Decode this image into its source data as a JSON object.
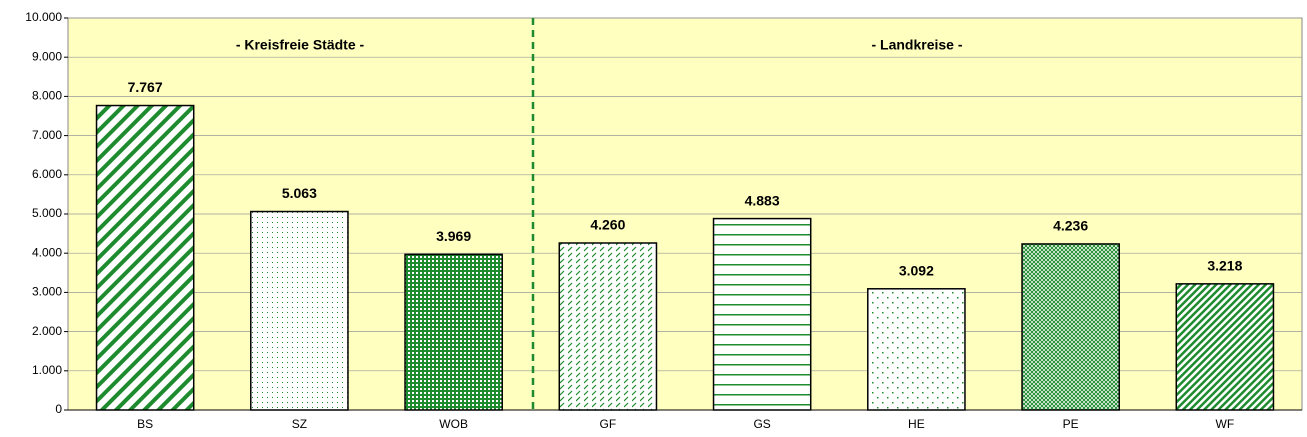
{
  "chart_data": {
    "type": "bar",
    "annotations": [
      "- Kreisfreie Städte -",
      "- Landkreise -"
    ],
    "categories": [
      "BS",
      "SZ",
      "WOB",
      "GF",
      "GS",
      "HE",
      "PE",
      "WF"
    ],
    "values": [
      7767,
      5063,
      3969,
      4260,
      4883,
      3092,
      4236,
      3218
    ],
    "value_labels": [
      "7.767",
      "5.063",
      "3.969",
      "4.260",
      "4.883",
      "3.092",
      "4.236",
      "3.218"
    ],
    "color": "#1e8c2e",
    "ylim": [
      0,
      10000
    ],
    "yticks": [
      0,
      {
        "value": 1000,
        "label": "1.000"
      },
      {
        "value": 2000,
        "label": "2.000"
      },
      {
        "value": 3000,
        "label": "3.000"
      },
      {
        "value": 4000,
        "label": "4.000"
      },
      {
        "value": 5000,
        "label": "5.000"
      },
      {
        "value": 6000,
        "label": "6.000"
      },
      {
        "value": 7000,
        "label": "7.000"
      },
      {
        "value": 8000,
        "label": "8.000"
      },
      {
        "value": 9000,
        "label": "9.000"
      },
      {
        "value": 10000,
        "label": "10.000"
      }
    ],
    "grid": true
  }
}
